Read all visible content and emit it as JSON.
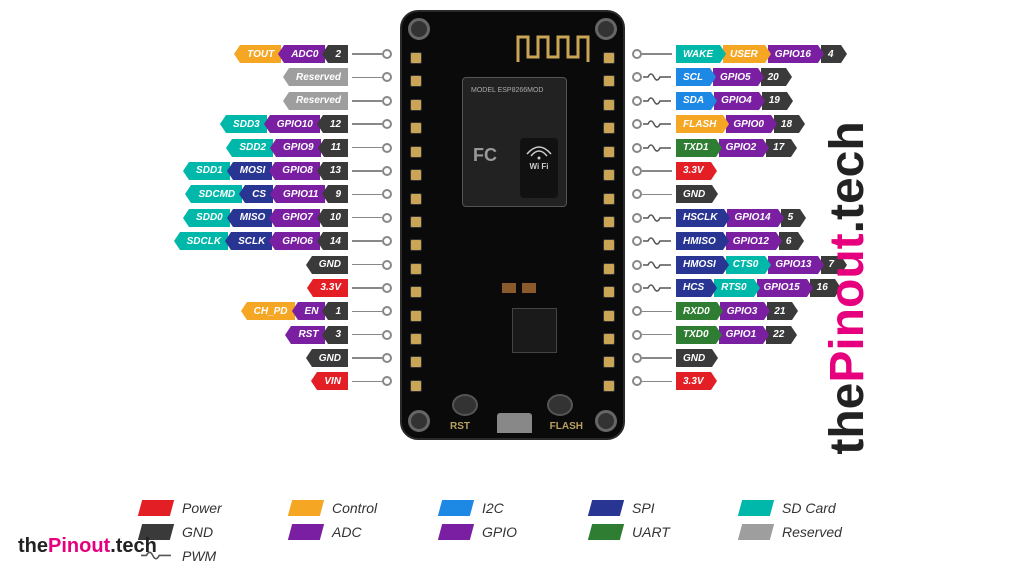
{
  "colors": {
    "power": "#e31e24",
    "gnd": "#3a3a3a",
    "control": "#f5a623",
    "adc": "#7b1fa2",
    "i2c": "#1e88e5",
    "gpio": "#7b1fa2",
    "spi": "#283593",
    "uart": "#2e7d32",
    "sdcard": "#00b8a9",
    "reserved": "#9e9e9e",
    "physical": "#3a3a3a"
  },
  "left_pins": [
    {
      "tags": [
        {
          "text": "TOUT",
          "c": "control"
        },
        {
          "text": "ADC0",
          "c": "adc"
        },
        {
          "text": "2",
          "c": "physical"
        }
      ],
      "pwm": false
    },
    {
      "tags": [
        {
          "text": "Reserved",
          "c": "reserved"
        }
      ],
      "pwm": false
    },
    {
      "tags": [
        {
          "text": "Reserved",
          "c": "reserved"
        }
      ],
      "pwm": false
    },
    {
      "tags": [
        {
          "text": "SDD3",
          "c": "sdcard"
        },
        {
          "text": "GPIO10",
          "c": "gpio"
        },
        {
          "text": "12",
          "c": "physical"
        }
      ],
      "pwm": false
    },
    {
      "tags": [
        {
          "text": "SDD2",
          "c": "sdcard"
        },
        {
          "text": "GPIO9",
          "c": "gpio"
        },
        {
          "text": "11",
          "c": "physical"
        }
      ],
      "pwm": false
    },
    {
      "tags": [
        {
          "text": "SDD1",
          "c": "sdcard"
        },
        {
          "text": "MOSI",
          "c": "spi"
        },
        {
          "text": "GPIO8",
          "c": "gpio"
        },
        {
          "text": "13",
          "c": "physical"
        }
      ],
      "pwm": false
    },
    {
      "tags": [
        {
          "text": "SDCMD",
          "c": "sdcard"
        },
        {
          "text": "CS",
          "c": "spi"
        },
        {
          "text": "GPIO11",
          "c": "gpio"
        },
        {
          "text": "9",
          "c": "physical"
        }
      ],
      "pwm": false
    },
    {
      "tags": [
        {
          "text": "SDD0",
          "c": "sdcard"
        },
        {
          "text": "MISO",
          "c": "spi"
        },
        {
          "text": "GPIO7",
          "c": "gpio"
        },
        {
          "text": "10",
          "c": "physical"
        }
      ],
      "pwm": false
    },
    {
      "tags": [
        {
          "text": "SDCLK",
          "c": "sdcard"
        },
        {
          "text": "SCLK",
          "c": "spi"
        },
        {
          "text": "GPIO6",
          "c": "gpio"
        },
        {
          "text": "14",
          "c": "physical"
        }
      ],
      "pwm": false
    },
    {
      "tags": [
        {
          "text": "GND",
          "c": "gnd"
        }
      ],
      "pwm": false
    },
    {
      "tags": [
        {
          "text": "3.3V",
          "c": "power"
        }
      ],
      "pwm": false
    },
    {
      "tags": [
        {
          "text": "CH_PD",
          "c": "control"
        },
        {
          "text": "EN",
          "c": "gpio"
        },
        {
          "text": "1",
          "c": "physical"
        }
      ],
      "pwm": false
    },
    {
      "tags": [
        {
          "text": "RST",
          "c": "gpio"
        },
        {
          "text": "3",
          "c": "physical"
        }
      ],
      "pwm": false
    },
    {
      "tags": [
        {
          "text": "GND",
          "c": "gnd"
        }
      ],
      "pwm": false
    },
    {
      "tags": [
        {
          "text": "VIN",
          "c": "power"
        }
      ],
      "pwm": false
    }
  ],
  "right_pins": [
    {
      "tags": [
        {
          "text": "4",
          "c": "physical"
        },
        {
          "text": "GPIO16",
          "c": "gpio"
        },
        {
          "text": "USER",
          "c": "control"
        },
        {
          "text": "WAKE",
          "c": "sdcard"
        }
      ],
      "pwm": false
    },
    {
      "tags": [
        {
          "text": "20",
          "c": "physical"
        },
        {
          "text": "GPIO5",
          "c": "gpio"
        },
        {
          "text": "SCL",
          "c": "i2c"
        }
      ],
      "pwm": true
    },
    {
      "tags": [
        {
          "text": "19",
          "c": "physical"
        },
        {
          "text": "GPIO4",
          "c": "gpio"
        },
        {
          "text": "SDA",
          "c": "i2c"
        }
      ],
      "pwm": true
    },
    {
      "tags": [
        {
          "text": "18",
          "c": "physical"
        },
        {
          "text": "GPIO0",
          "c": "gpio"
        },
        {
          "text": "FLASH",
          "c": "control"
        }
      ],
      "pwm": true
    },
    {
      "tags": [
        {
          "text": "17",
          "c": "physical"
        },
        {
          "text": "GPIO2",
          "c": "gpio"
        },
        {
          "text": "TXD1",
          "c": "uart"
        }
      ],
      "pwm": true
    },
    {
      "tags": [
        {
          "text": "3.3V",
          "c": "power"
        }
      ],
      "pwm": false
    },
    {
      "tags": [
        {
          "text": "GND",
          "c": "gnd"
        }
      ],
      "pwm": false
    },
    {
      "tags": [
        {
          "text": "5",
          "c": "physical"
        },
        {
          "text": "GPIO14",
          "c": "gpio"
        },
        {
          "text": "HSCLK",
          "c": "spi"
        }
      ],
      "pwm": true
    },
    {
      "tags": [
        {
          "text": "6",
          "c": "physical"
        },
        {
          "text": "GPIO12",
          "c": "gpio"
        },
        {
          "text": "HMISO",
          "c": "spi"
        }
      ],
      "pwm": true
    },
    {
      "tags": [
        {
          "text": "7",
          "c": "physical"
        },
        {
          "text": "GPIO13",
          "c": "gpio"
        },
        {
          "text": "CTS0",
          "c": "sdcard"
        },
        {
          "text": "HMOSI",
          "c": "spi"
        }
      ],
      "pwm": true
    },
    {
      "tags": [
        {
          "text": "16",
          "c": "physical"
        },
        {
          "text": "GPIO15",
          "c": "gpio"
        },
        {
          "text": "RTS0",
          "c": "sdcard"
        },
        {
          "text": "HCS",
          "c": "spi"
        }
      ],
      "pwm": true
    },
    {
      "tags": [
        {
          "text": "21",
          "c": "physical"
        },
        {
          "text": "GPIO3",
          "c": "gpio"
        },
        {
          "text": "RXD0",
          "c": "uart"
        }
      ],
      "pwm": false
    },
    {
      "tags": [
        {
          "text": "22",
          "c": "physical"
        },
        {
          "text": "GPIO1",
          "c": "gpio"
        },
        {
          "text": "TXD0",
          "c": "uart"
        }
      ],
      "pwm": false
    },
    {
      "tags": [
        {
          "text": "GND",
          "c": "gnd"
        }
      ],
      "pwm": false
    },
    {
      "tags": [
        {
          "text": "3.3V",
          "c": "power"
        }
      ],
      "pwm": false
    }
  ],
  "legend": [
    {
      "label": "Power",
      "c": "power"
    },
    {
      "label": "Control",
      "c": "control"
    },
    {
      "label": "I2C",
      "c": "i2c"
    },
    {
      "label": "SPI",
      "c": "spi"
    },
    {
      "label": "SD Card",
      "c": "sdcard"
    },
    {
      "label": "GND",
      "c": "gnd"
    },
    {
      "label": "ADC",
      "c": "adc"
    },
    {
      "label": "GPIO",
      "c": "gpio"
    },
    {
      "label": "UART",
      "c": "uart"
    },
    {
      "label": "Reserved",
      "c": "reserved"
    },
    {
      "label": "PWM",
      "c": "pwm"
    }
  ],
  "board": {
    "btn_left": "RST",
    "btn_right": "FLASH",
    "chip_model": "MODEL\nESP8266MOD",
    "wifi_text": "Wi Fi",
    "fc": "FC"
  },
  "brand": {
    "the": "the",
    "pinout": "Pinout",
    "tech": ".tech"
  }
}
